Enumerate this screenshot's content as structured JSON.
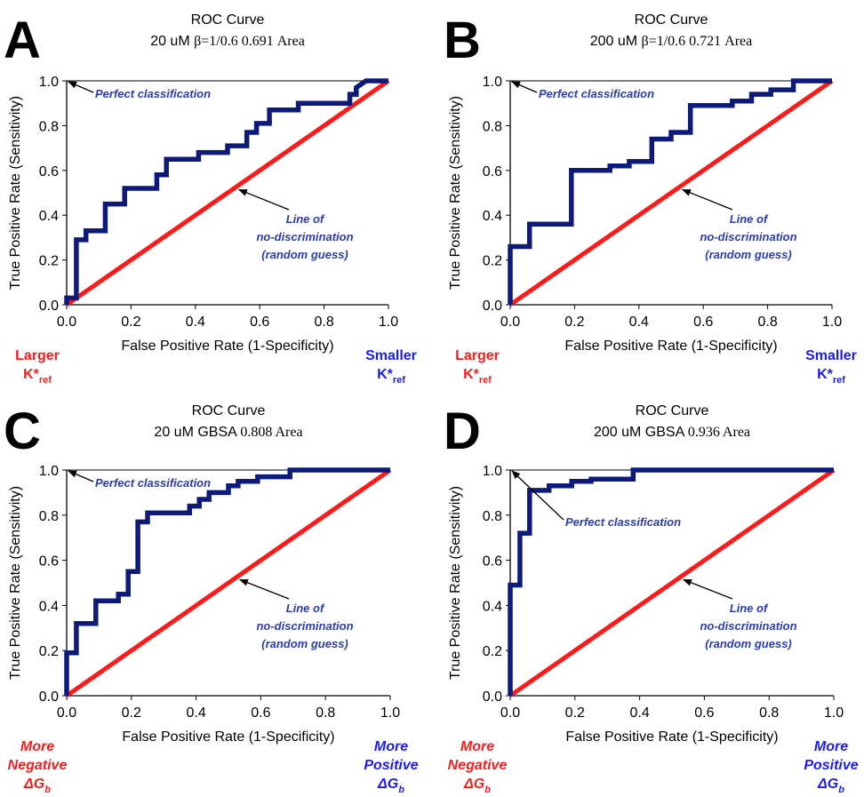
{
  "colors": {
    "roc": "#0d1a7a",
    "diagonal": "#ff1a1a",
    "annotation": "#2a3bb8",
    "corner_red": "#ff1a1a",
    "corner_blue": "#1a1aff"
  },
  "chart_data": [
    {
      "type": "line",
      "panel": "A",
      "title_line1": "ROC Curve",
      "title_prefix": "20 uM",
      "title_suffix": "β=1/0.6 0.691 Area",
      "xlabel": "False Positive Rate (1-Specificity)",
      "ylabel": "True Positive Rate (Sensitivity)",
      "xlim": [
        0,
        1
      ],
      "ylim": [
        0,
        1
      ],
      "xticks": [
        "0.0",
        "0.2",
        "0.4",
        "0.6",
        "0.8",
        "1.0"
      ],
      "yticks": [
        "0.0",
        "0.2",
        "0.4",
        "0.6",
        "0.8",
        "1.0"
      ],
      "annotations": {
        "perfect": "Perfect classification",
        "line1": "Line of",
        "line2": "no-discrimination",
        "line3": "(random guess)"
      },
      "corner_left": [
        {
          "text": "Larger",
          "sub": ""
        },
        {
          "text": "K*",
          "sub": "ref"
        }
      ],
      "corner_right": [
        {
          "text": "Smaller",
          "sub": ""
        },
        {
          "text": "K*",
          "sub": "ref"
        }
      ],
      "corner_left_italic": false,
      "roc": {
        "x": [
          0,
          0,
          0.03,
          0.03,
          0.06,
          0.06,
          0.12,
          0.12,
          0.18,
          0.18,
          0.28,
          0.28,
          0.31,
          0.31,
          0.41,
          0.41,
          0.5,
          0.5,
          0.56,
          0.56,
          0.59,
          0.59,
          0.63,
          0.63,
          0.72,
          0.72,
          0.88,
          0.88,
          0.9,
          0.9,
          0.93,
          1.0
        ],
        "y": [
          0,
          0.03,
          0.03,
          0.29,
          0.29,
          0.33,
          0.33,
          0.45,
          0.45,
          0.52,
          0.52,
          0.58,
          0.58,
          0.65,
          0.65,
          0.68,
          0.68,
          0.71,
          0.71,
          0.77,
          0.77,
          0.81,
          0.81,
          0.87,
          0.87,
          0.9,
          0.9,
          0.94,
          0.94,
          0.97,
          1.0,
          1.0
        ]
      },
      "diagonal": {
        "x": [
          0,
          1
        ],
        "y": [
          0,
          1
        ]
      }
    },
    {
      "type": "line",
      "panel": "B",
      "title_line1": "ROC Curve",
      "title_prefix": "200 uM",
      "title_suffix": "β=1/0.6 0.721 Area",
      "xlabel": "False Positive Rate (1-Specificity)",
      "ylabel": "True Positive Rate (Sensitivity)",
      "xlim": [
        0,
        1
      ],
      "ylim": [
        0,
        1
      ],
      "xticks": [
        "0.0",
        "0.2",
        "0.4",
        "0.6",
        "0.8",
        "1.0"
      ],
      "yticks": [
        "0.0",
        "0.2",
        "0.4",
        "0.6",
        "0.8",
        "1.0"
      ],
      "annotations": {
        "perfect": "Perfect classification",
        "line1": "Line of",
        "line2": "no-discrimination",
        "line3": "(random guess)"
      },
      "corner_left": [
        {
          "text": "Larger",
          "sub": ""
        },
        {
          "text": "K*",
          "sub": "ref"
        }
      ],
      "corner_right": [
        {
          "text": "Smaller",
          "sub": ""
        },
        {
          "text": "K*",
          "sub": "ref"
        }
      ],
      "corner_left_italic": false,
      "roc": {
        "x": [
          0,
          0,
          0.06,
          0.06,
          0.19,
          0.19,
          0.31,
          0.31,
          0.37,
          0.37,
          0.44,
          0.44,
          0.5,
          0.5,
          0.56,
          0.56,
          0.69,
          0.69,
          0.75,
          0.75,
          0.81,
          0.81,
          0.88,
          0.88,
          1.0
        ],
        "y": [
          0,
          0.26,
          0.26,
          0.36,
          0.36,
          0.6,
          0.6,
          0.62,
          0.62,
          0.64,
          0.64,
          0.74,
          0.74,
          0.77,
          0.77,
          0.89,
          0.89,
          0.91,
          0.91,
          0.94,
          0.94,
          0.96,
          0.96,
          1.0,
          1.0
        ]
      },
      "diagonal": {
        "x": [
          0,
          1
        ],
        "y": [
          0,
          1
        ]
      }
    },
    {
      "type": "line",
      "panel": "C",
      "title_line1": "ROC Curve",
      "title_prefix": "20 uM GBSA",
      "title_suffix": "0.808 Area",
      "xlabel": "False Positive Rate (1-Specificity)",
      "ylabel": "True Positive Rate (Sensitivity)",
      "xlim": [
        0,
        1
      ],
      "ylim": [
        0,
        1
      ],
      "xticks": [
        "0.0",
        "0.2",
        "0.4",
        "0.6",
        "0.8",
        "1.0"
      ],
      "yticks": [
        "0.0",
        "0.2",
        "0.4",
        "0.6",
        "0.8",
        "1.0"
      ],
      "annotations": {
        "perfect": "Perfect classification",
        "line1": "Line of",
        "line2": "no-discrimination",
        "line3": "(random guess)"
      },
      "corner_left": [
        {
          "text": "More",
          "sub": ""
        },
        {
          "text": "Negative",
          "sub": ""
        },
        {
          "text": "ΔG",
          "sub": "b"
        }
      ],
      "corner_right": [
        {
          "text": "More",
          "sub": ""
        },
        {
          "text": "Positive",
          "sub": ""
        },
        {
          "text": "ΔG",
          "sub": "b"
        }
      ],
      "corner_left_italic": true,
      "roc": {
        "x": [
          0,
          0,
          0.03,
          0.03,
          0.09,
          0.09,
          0.16,
          0.16,
          0.19,
          0.19,
          0.22,
          0.22,
          0.25,
          0.25,
          0.38,
          0.38,
          0.41,
          0.41,
          0.44,
          0.44,
          0.5,
          0.5,
          0.53,
          0.53,
          0.59,
          0.59,
          0.69,
          0.69,
          1.0
        ],
        "y": [
          0,
          0.19,
          0.19,
          0.32,
          0.32,
          0.42,
          0.42,
          0.45,
          0.45,
          0.55,
          0.55,
          0.77,
          0.77,
          0.81,
          0.81,
          0.84,
          0.84,
          0.87,
          0.87,
          0.9,
          0.9,
          0.93,
          0.93,
          0.95,
          0.95,
          0.97,
          0.97,
          1.0,
          1.0
        ]
      },
      "diagonal": {
        "x": [
          0,
          1
        ],
        "y": [
          0,
          1
        ]
      }
    },
    {
      "type": "line",
      "panel": "D",
      "title_line1": "ROC Curve",
      "title_prefix": "200 uM GBSA",
      "title_suffix": "0.936 Area",
      "xlabel": "False Positive Rate (1-Specificity)",
      "ylabel": "True Positive Rate (Sensitivity)",
      "xlim": [
        0,
        1
      ],
      "ylim": [
        0,
        1
      ],
      "xticks": [
        "0.0",
        "0.2",
        "0.4",
        "0.6",
        "0.8",
        "1.0"
      ],
      "yticks": [
        "0.0",
        "0.2",
        "0.4",
        "0.6",
        "0.8",
        "1.0"
      ],
      "annotations": {
        "perfect": "Perfect classification",
        "line1": "Line of",
        "line2": "no-discrimination",
        "line3": "(random guess)"
      },
      "corner_left": [
        {
          "text": "More",
          "sub": ""
        },
        {
          "text": "Negative",
          "sub": ""
        },
        {
          "text": "ΔG",
          "sub": "b"
        }
      ],
      "corner_right": [
        {
          "text": "More",
          "sub": ""
        },
        {
          "text": "Positive",
          "sub": ""
        },
        {
          "text": "ΔG",
          "sub": "b"
        }
      ],
      "corner_left_italic": true,
      "roc": {
        "x": [
          0,
          0,
          0.03,
          0.03,
          0.06,
          0.06,
          0.12,
          0.12,
          0.19,
          0.19,
          0.25,
          0.25,
          0.38,
          0.38,
          1.0
        ],
        "y": [
          0,
          0.49,
          0.49,
          0.72,
          0.72,
          0.91,
          0.91,
          0.93,
          0.93,
          0.95,
          0.95,
          0.96,
          0.96,
          1.0,
          1.0
        ]
      },
      "diagonal": {
        "x": [
          0,
          1
        ],
        "y": [
          0,
          1
        ]
      }
    }
  ]
}
